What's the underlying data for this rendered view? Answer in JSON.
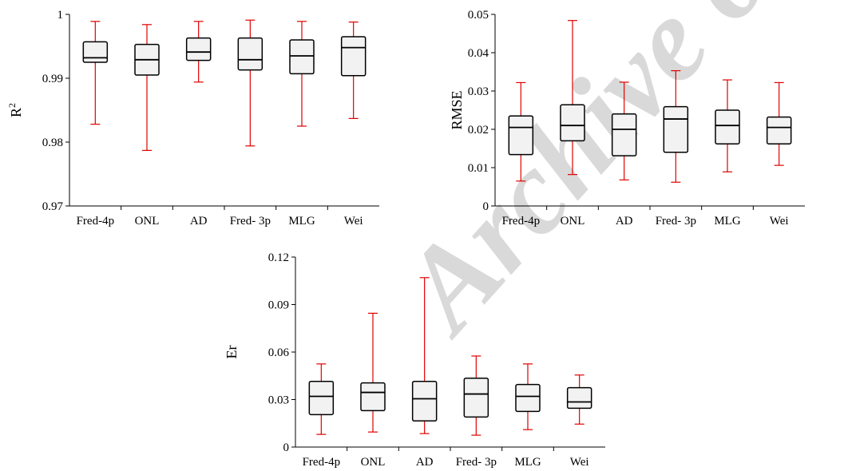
{
  "watermark": "Archive of SID",
  "chart_data": [
    {
      "type": "box",
      "ylabel": "R",
      "ylabel_superscript": "2",
      "categories": [
        "Fred-4p",
        "ONL",
        "AD",
        "Fred- 3p",
        "MLG",
        "Wei"
      ],
      "ylim": [
        0.97,
        1
      ],
      "yticks": [
        "0.97",
        "0.98",
        "0.99",
        "1"
      ],
      "tick_values": [
        0.97,
        0.98,
        0.99,
        1
      ],
      "boxes": [
        {
          "min": 0.9828,
          "q1": 0.9925,
          "median": 0.9932,
          "q3": 0.9957,
          "max": 0.9989
        },
        {
          "min": 0.9787,
          "q1": 0.9905,
          "median": 0.9929,
          "q3": 0.9953,
          "max": 0.9984
        },
        {
          "min": 0.9894,
          "q1": 0.9928,
          "median": 0.9941,
          "q3": 0.9963,
          "max": 0.9989
        },
        {
          "min": 0.9794,
          "q1": 0.9913,
          "median": 0.9929,
          "q3": 0.9963,
          "max": 0.9991
        },
        {
          "min": 0.9825,
          "q1": 0.9907,
          "median": 0.9935,
          "q3": 0.996,
          "max": 0.9989
        },
        {
          "min": 0.9837,
          "q1": 0.9904,
          "median": 0.9948,
          "q3": 0.9965,
          "max": 0.9988
        }
      ],
      "box_fill": "#f2f2f2",
      "whisker_color": "#e00000",
      "grid": false
    },
    {
      "type": "box",
      "ylabel": "RMSE",
      "categories": [
        "Fred-4p",
        "ONL",
        "AD",
        "Fred- 3p",
        "MLG",
        "Wei"
      ],
      "ylim": [
        0,
        0.05
      ],
      "yticks": [
        "0",
        "0.01",
        "0.02",
        "0.03",
        "0.04",
        "0.05"
      ],
      "tick_values": [
        0,
        0.01,
        0.02,
        0.03,
        0.04,
        0.05
      ],
      "boxes": [
        {
          "min": 0.0065,
          "q1": 0.0134,
          "median": 0.0205,
          "q3": 0.0235,
          "max": 0.0322
        },
        {
          "min": 0.0082,
          "q1": 0.017,
          "median": 0.021,
          "q3": 0.0264,
          "max": 0.0484
        },
        {
          "min": 0.0068,
          "q1": 0.0131,
          "median": 0.02,
          "q3": 0.024,
          "max": 0.0323
        },
        {
          "min": 0.0062,
          "q1": 0.014,
          "median": 0.0227,
          "q3": 0.0259,
          "max": 0.0353
        },
        {
          "min": 0.0089,
          "q1": 0.0162,
          "median": 0.021,
          "q3": 0.025,
          "max": 0.0329
        },
        {
          "min": 0.0106,
          "q1": 0.0162,
          "median": 0.0205,
          "q3": 0.0232,
          "max": 0.0322
        }
      ],
      "box_fill": "#f2f2f2",
      "whisker_color": "#e00000",
      "grid": false
    },
    {
      "type": "box",
      "ylabel": "Er",
      "categories": [
        "Fred-4p",
        "ONL",
        "AD",
        "Fred- 3p",
        "MLG",
        "Wei"
      ],
      "ylim": [
        0,
        0.12
      ],
      "yticks": [
        "0",
        "0.03",
        "0.06",
        "0.09",
        "0.12"
      ],
      "tick_values": [
        0,
        0.03,
        0.06,
        0.09,
        0.12
      ],
      "boxes": [
        {
          "min": 0.008,
          "q1": 0.0205,
          "median": 0.032,
          "q3": 0.0415,
          "max": 0.0525
        },
        {
          "min": 0.0095,
          "q1": 0.023,
          "median": 0.0345,
          "q3": 0.0405,
          "max": 0.0845
        },
        {
          "min": 0.0085,
          "q1": 0.0165,
          "median": 0.0305,
          "q3": 0.0415,
          "max": 0.107
        },
        {
          "min": 0.0075,
          "q1": 0.019,
          "median": 0.0335,
          "q3": 0.0435,
          "max": 0.0575
        },
        {
          "min": 0.011,
          "q1": 0.0225,
          "median": 0.032,
          "q3": 0.0395,
          "max": 0.0525
        },
        {
          "min": 0.0145,
          "q1": 0.0245,
          "median": 0.0285,
          "q3": 0.0375,
          "max": 0.0455
        }
      ],
      "box_fill": "#f2f2f2",
      "whisker_color": "#e00000",
      "grid": false
    }
  ]
}
